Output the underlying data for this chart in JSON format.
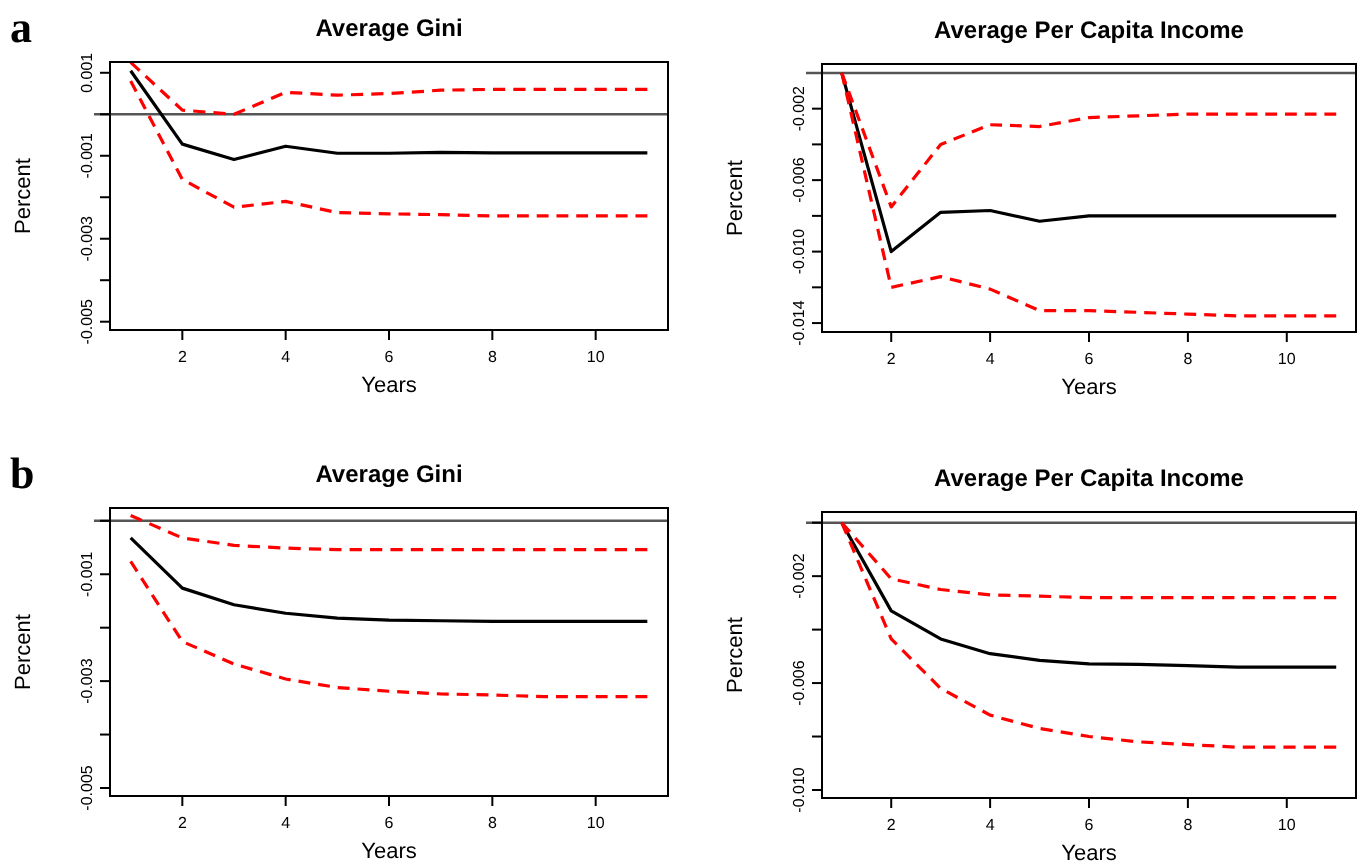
{
  "chart_data": [
    {
      "type": "line",
      "title": "Average Gini",
      "xlabel": "Years",
      "ylabel": "Percent",
      "annotations": [
        "a"
      ],
      "x": [
        1,
        2,
        3,
        4,
        5,
        6,
        7,
        8,
        9,
        10,
        11
      ],
      "xlim": [
        0.6,
        11.4
      ],
      "xticks": [
        2,
        4,
        6,
        8,
        10
      ],
      "ylim": [
        -0.0052,
        0.00126
      ],
      "yticks": [
        {
          "value": 0.001,
          "label": "0.001"
        },
        {
          "value": 0,
          "label": null
        },
        {
          "value": -0.001,
          "label": "-0.001"
        },
        {
          "value": -0.002,
          "label": null
        },
        {
          "value": -0.003,
          "label": "-0.003"
        },
        {
          "value": -0.004,
          "label": null
        },
        {
          "value": -0.005,
          "label": "-0.005"
        }
      ],
      "ref_lines": [
        {
          "axis": "y",
          "value": 0,
          "color": "#555555"
        }
      ],
      "series": [
        {
          "color": "#000000",
          "line_style": "solid",
          "values": [
            0.00105,
            -0.00072,
            -0.00109,
            -0.00077,
            -0.00094,
            -0.00094,
            -0.00092,
            -0.00093,
            -0.00093,
            -0.00093,
            -0.00093
          ]
        },
        {
          "color": "#ff0000",
          "line_style": "dashed",
          "values": [
            0.00125,
            0.0001,
            0,
            0.00053,
            0.00046,
            0.0005,
            0.00058,
            0.0006,
            0.0006,
            0.0006,
            0.0006
          ]
        },
        {
          "color": "#ff0000",
          "line_style": "dashed",
          "values": [
            0.0008,
            -0.00157,
            -0.00224,
            -0.0021,
            -0.00237,
            -0.0024,
            -0.00242,
            -0.00245,
            -0.00245,
            -0.00245,
            -0.00245
          ]
        }
      ]
    },
    {
      "type": "line",
      "title": "Average Per Capita Income",
      "xlabel": "Years",
      "ylabel": "Percent",
      "x": [
        1,
        2,
        3,
        4,
        5,
        6,
        7,
        8,
        9,
        10,
        11
      ],
      "xlim": [
        0.6,
        11.4
      ],
      "xticks": [
        2,
        4,
        6,
        8,
        10
      ],
      "ylim": [
        -0.0145,
        0.0005
      ],
      "yticks": [
        {
          "value": -0.002,
          "label": "-0.002"
        },
        {
          "value": -0.004,
          "label": null
        },
        {
          "value": -0.006,
          "label": "-0.006"
        },
        {
          "value": -0.008,
          "label": null
        },
        {
          "value": -0.01,
          "label": "-0.010"
        },
        {
          "value": -0.012,
          "label": null
        },
        {
          "value": -0.014,
          "label": "-0.014"
        }
      ],
      "ref_lines": [
        {
          "axis": "y",
          "value": 0,
          "color": "#555555"
        }
      ],
      "series": [
        {
          "color": "#000000",
          "line_style": "solid",
          "values": [
            0,
            -0.01,
            -0.0078,
            -0.0077,
            -0.0083,
            -0.008,
            -0.008,
            -0.008,
            -0.008,
            -0.008,
            -0.008
          ]
        },
        {
          "color": "#ff0000",
          "line_style": "dashed",
          "values": [
            0,
            -0.0075,
            -0.004,
            -0.0029,
            -0.003,
            -0.0025,
            -0.0024,
            -0.0023,
            -0.0023,
            -0.0023,
            -0.0023
          ]
        },
        {
          "color": "#ff0000",
          "line_style": "dashed",
          "values": [
            0,
            -0.012,
            -0.0114,
            -0.0121,
            -0.0133,
            -0.0133,
            -0.0134,
            -0.0135,
            -0.0136,
            -0.0136,
            -0.0136
          ]
        }
      ]
    },
    {
      "type": "line",
      "title": "Average Gini",
      "xlabel": "Years",
      "ylabel": "Percent",
      "annotations": [
        "b"
      ],
      "x": [
        1,
        2,
        3,
        4,
        5,
        6,
        7,
        8,
        9,
        10,
        11
      ],
      "xlim": [
        0.6,
        11.4
      ],
      "xticks": [
        2,
        4,
        6,
        8,
        10
      ],
      "ylim": [
        -0.00515,
        0.00024
      ],
      "yticks": [
        {
          "value": 0,
          "label": null
        },
        {
          "value": -0.001,
          "label": "-0.001"
        },
        {
          "value": -0.002,
          "label": null
        },
        {
          "value": -0.003,
          "label": "-0.003"
        },
        {
          "value": -0.004,
          "label": null
        },
        {
          "value": -0.005,
          "label": "-0.005"
        }
      ],
      "ref_lines": [
        {
          "axis": "y",
          "value": 0,
          "color": "#555555"
        }
      ],
      "series": [
        {
          "color": "#000000",
          "line_style": "solid",
          "values": [
            -0.00032,
            -0.00126,
            -0.00157,
            -0.00173,
            -0.00182,
            -0.00186,
            -0.00187,
            -0.00188,
            -0.00188,
            -0.00188,
            -0.00188
          ]
        },
        {
          "color": "#ff0000",
          "line_style": "dashed",
          "values": [
            0.0001,
            -0.00032,
            -0.00046,
            -0.00051,
            -0.00054,
            -0.00054,
            -0.00054,
            -0.00054,
            -0.00054,
            -0.00054,
            -0.00054
          ]
        },
        {
          "color": "#ff0000",
          "line_style": "dashed",
          "values": [
            -0.00076,
            -0.00226,
            -0.00268,
            -0.00296,
            -0.00312,
            -0.00319,
            -0.00324,
            -0.00326,
            -0.00329,
            -0.00329,
            -0.00329
          ]
        }
      ]
    },
    {
      "type": "line",
      "title": "Average Per Capita Income",
      "xlabel": "Years",
      "ylabel": "Percent",
      "x": [
        1,
        2,
        3,
        4,
        5,
        6,
        7,
        8,
        9,
        10,
        11
      ],
      "xlim": [
        0.6,
        11.4
      ],
      "xticks": [
        2,
        4,
        6,
        8,
        10
      ],
      "ylim": [
        -0.0103,
        0.0004
      ],
      "yticks": [
        {
          "value": 0,
          "label": null
        },
        {
          "value": -0.002,
          "label": "-0.002"
        },
        {
          "value": -0.004,
          "label": null
        },
        {
          "value": -0.006,
          "label": "-0.006"
        },
        {
          "value": -0.008,
          "label": null
        },
        {
          "value": -0.01,
          "label": "-0.010"
        }
      ],
      "ref_lines": [
        {
          "axis": "y",
          "value": 0,
          "color": "#555555"
        }
      ],
      "series": [
        {
          "color": "#000000",
          "line_style": "solid",
          "values": [
            0,
            -0.0033,
            -0.00435,
            -0.0049,
            -0.00515,
            -0.00528,
            -0.0053,
            -0.00535,
            -0.0054,
            -0.0054,
            -0.0054
          ]
        },
        {
          "color": "#ff0000",
          "line_style": "dashed",
          "values": [
            0,
            -0.0021,
            -0.0025,
            -0.0027,
            -0.00275,
            -0.0028,
            -0.0028,
            -0.0028,
            -0.0028,
            -0.0028,
            -0.0028
          ]
        },
        {
          "color": "#ff0000",
          "line_style": "dashed",
          "values": [
            0,
            -0.00435,
            -0.0062,
            -0.0072,
            -0.0077,
            -0.008,
            -0.0082,
            -0.0083,
            -0.0084,
            -0.0084,
            -0.0084
          ]
        }
      ]
    }
  ]
}
